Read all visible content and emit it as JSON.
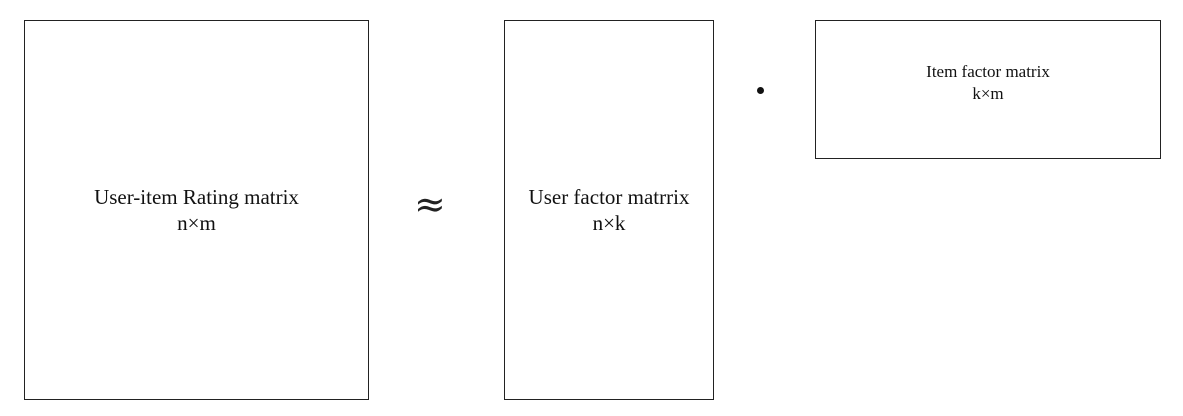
{
  "matrices": {
    "rating": {
      "title": "User-item Rating matrix",
      "dims": "n×m"
    },
    "user": {
      "title": "User factor matrrix",
      "dims": "n×k"
    },
    "item": {
      "title": "Item factor matrix",
      "dims": "k×m"
    }
  },
  "operators": {
    "approx": "≈",
    "dot": "•"
  }
}
